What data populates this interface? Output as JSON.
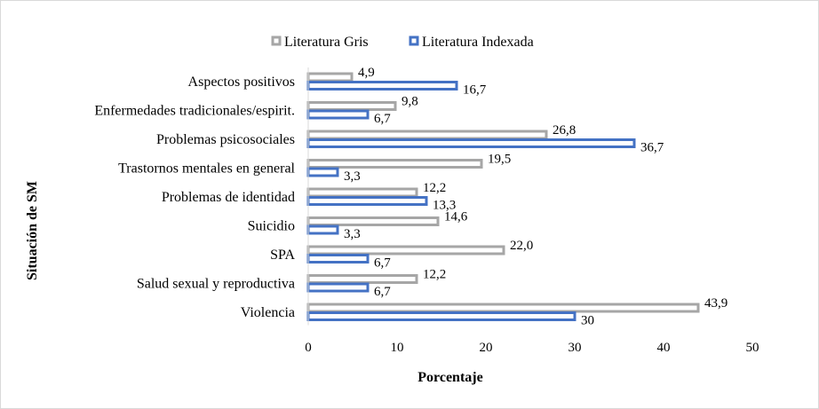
{
  "chart_data": {
    "type": "bar",
    "orientation": "horizontal",
    "categories": [
      "Aspectos positivos",
      "Enfermedades tradicionales/espirit.",
      "Problemas psicosociales",
      "Trastornos mentales en general",
      "Problemas de identidad",
      "Suicidio",
      "SPA",
      "Salud sexual y reproductiva",
      "Violencia"
    ],
    "series": [
      {
        "name": "Literatura Gris",
        "color": "#a6a6a6",
        "values": [
          4.9,
          9.8,
          26.8,
          19.5,
          12.2,
          14.6,
          22.0,
          12.2,
          43.9
        ],
        "labels": [
          "4,9",
          "9,8",
          "26,8",
          "19,5",
          "12,2",
          "14,6",
          "22,0",
          "12,2",
          "43,9"
        ]
      },
      {
        "name": "Literatura Indexada",
        "color": "#4472c4",
        "values": [
          16.7,
          6.7,
          36.7,
          3.3,
          13.3,
          3.3,
          6.7,
          6.7,
          30
        ],
        "labels": [
          "16,7",
          "6,7",
          "36,7",
          "3,3",
          "13,3",
          "3,3",
          "6,7",
          "6,7",
          "30"
        ]
      }
    ],
    "xlabel": "Porcentaje",
    "ylabel": "Situación de SM",
    "xlim": [
      0,
      50
    ],
    "xticks": [
      "0",
      "10",
      "20",
      "30",
      "40",
      "50"
    ],
    "legend_position": "top-center",
    "grid": false
  }
}
